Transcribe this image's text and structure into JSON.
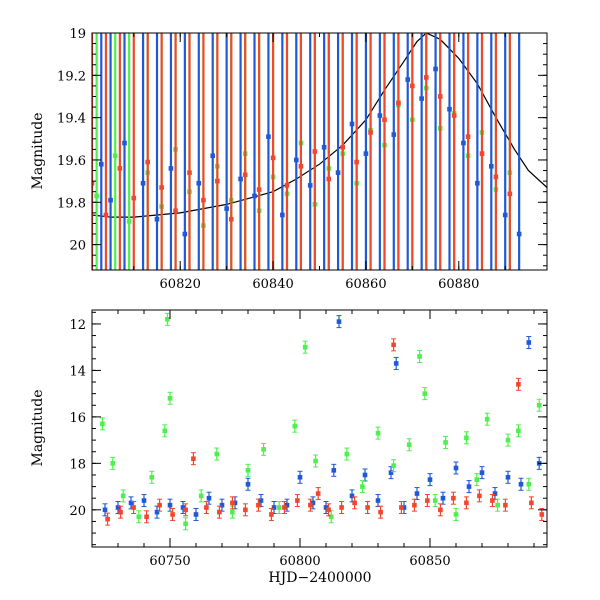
{
  "colors": {
    "blue": "#1f5ad6",
    "green": "#4ef04e",
    "red": "#f2472c",
    "curve": "#000000"
  },
  "chart_data": [
    {
      "type": "scatter",
      "title": "",
      "xlabel": "",
      "ylabel": "Magnitude",
      "xlim": [
        60801,
        60899
      ],
      "ylim": [
        20.12,
        19.0
      ],
      "y_inverted": true,
      "xticks": [
        60820,
        60840,
        60860,
        60880
      ],
      "yticks": [
        19,
        19.2,
        19.4,
        19.6,
        19.8,
        20
      ],
      "ytick_labels": [
        "19",
        "19.2",
        "19.4",
        "19.6",
        "19.8",
        "20"
      ],
      "model_curve": [
        [
          60801,
          19.86
        ],
        [
          60805,
          19.87
        ],
        [
          60810,
          19.87
        ],
        [
          60815,
          19.86
        ],
        [
          60820,
          19.85
        ],
        [
          60825,
          19.83
        ],
        [
          60830,
          19.81
        ],
        [
          60835,
          19.78
        ],
        [
          60840,
          19.75
        ],
        [
          60845,
          19.69
        ],
        [
          60850,
          19.62
        ],
        [
          60855,
          19.53
        ],
        [
          60860,
          19.41
        ],
        [
          60864,
          19.27
        ],
        [
          60868,
          19.14
        ],
        [
          60871,
          19.04
        ],
        [
          60873,
          19.0
        ],
        [
          60876,
          19.03
        ],
        [
          60880,
          19.12
        ],
        [
          60884,
          19.24
        ],
        [
          60888,
          19.4
        ],
        [
          60892,
          19.55
        ],
        [
          60895,
          19.65
        ],
        [
          60899,
          19.73
        ]
      ],
      "series": [
        {
          "color": "blue",
          "values": [
            [
              60803,
              19.62
            ],
            [
              60805,
              19.79
            ],
            [
              60808,
              19.52
            ],
            [
              60812,
              19.71
            ],
            [
              60815,
              19.88
            ],
            [
              60818,
              19.64
            ],
            [
              60821,
              19.95
            ],
            [
              60824,
              19.71
            ],
            [
              60827,
              19.58
            ],
            [
              60830,
              19.83
            ],
            [
              60833,
              19.69
            ],
            [
              60836,
              19.77
            ],
            [
              60839,
              19.49
            ],
            [
              60842,
              19.86
            ],
            [
              60845,
              19.6
            ],
            [
              60848,
              19.72
            ],
            [
              60851,
              19.54
            ],
            [
              60854,
              19.66
            ],
            [
              60857,
              19.43
            ],
            [
              60860,
              19.57
            ],
            [
              60863,
              19.39
            ],
            [
              60866,
              19.48
            ],
            [
              60869,
              19.22
            ],
            [
              60872,
              19.31
            ],
            [
              60875,
              19.17
            ],
            [
              60878,
              19.36
            ],
            [
              60881,
              19.52
            ],
            [
              60884,
              19.71
            ],
            [
              60887,
              19.63
            ],
            [
              60890,
              19.86
            ],
            [
              60893,
              19.95
            ]
          ]
        },
        {
          "color": "green",
          "values": [
            [
              60802,
              19.77
            ],
            [
              60806,
              19.58
            ],
            [
              60809,
              19.89
            ],
            [
              60813,
              19.66
            ],
            [
              60816,
              19.82
            ],
            [
              60819,
              19.55
            ],
            [
              60822,
              19.75
            ],
            [
              60825,
              19.91
            ],
            [
              60828,
              19.63
            ],
            [
              60831,
              19.79
            ],
            [
              60834,
              19.57
            ],
            [
              60837,
              19.84
            ],
            [
              60840,
              19.68
            ],
            [
              60843,
              19.76
            ],
            [
              60846,
              19.52
            ],
            [
              60849,
              19.81
            ],
            [
              60852,
              19.64
            ],
            [
              60855,
              19.57
            ],
            [
              60858,
              19.71
            ],
            [
              60861,
              19.46
            ],
            [
              60864,
              19.53
            ],
            [
              60867,
              19.34
            ],
            [
              60870,
              19.41
            ],
            [
              60873,
              19.26
            ],
            [
              60876,
              19.45
            ],
            [
              60879,
              19.38
            ],
            [
              60882,
              19.58
            ],
            [
              60885,
              19.47
            ],
            [
              60888,
              19.74
            ],
            [
              60891,
              19.66
            ]
          ]
        },
        {
          "color": "red",
          "values": [
            [
              60801,
              19.71
            ],
            [
              60804,
              19.86
            ],
            [
              60807,
              19.64
            ],
            [
              60810,
              19.78
            ],
            [
              60813,
              19.61
            ],
            [
              60816,
              19.73
            ],
            [
              60819,
              19.84
            ],
            [
              60822,
              19.66
            ],
            [
              60825,
              19.79
            ],
            [
              60828,
              19.7
            ],
            [
              60831,
              19.88
            ],
            [
              60834,
              19.67
            ],
            [
              60837,
              19.74
            ],
            [
              60840,
              19.59
            ],
            [
              60843,
              19.72
            ],
            [
              60846,
              19.63
            ],
            [
              60849,
              19.56
            ],
            [
              60852,
              19.69
            ],
            [
              60855,
              19.54
            ],
            [
              60858,
              19.61
            ],
            [
              60861,
              19.47
            ],
            [
              60864,
              19.41
            ],
            [
              60867,
              19.33
            ],
            [
              60870,
              19.25
            ],
            [
              60873,
              19.21
            ],
            [
              60876,
              19.3
            ],
            [
              60879,
              19.39
            ],
            [
              60882,
              19.49
            ],
            [
              60885,
              19.57
            ],
            [
              60888,
              19.68
            ],
            [
              60891,
              19.76
            ]
          ]
        }
      ]
    },
    {
      "type": "scatter",
      "title": "",
      "xlabel": "HJD−2400000",
      "ylabel": "Magnitude",
      "xlim": [
        60720,
        60895
      ],
      "ylim": [
        21.6,
        11.4
      ],
      "y_inverted": true,
      "xticks": [
        60750,
        60800,
        60850
      ],
      "yticks": [
        12,
        14,
        16,
        18,
        20
      ],
      "ytick_labels": [
        "12",
        "14",
        "16",
        "18",
        "20"
      ],
      "series": [
        {
          "color": "blue",
          "values": [
            [
              60725,
              20.0
            ],
            [
              60730,
              19.9
            ],
            [
              60735,
              19.7
            ],
            [
              60740,
              19.6
            ],
            [
              60745,
              20.1
            ],
            [
              60750,
              19.8
            ],
            [
              60755,
              19.9
            ],
            [
              60760,
              20.2
            ],
            [
              60765,
              19.5
            ],
            [
              60770,
              19.8
            ],
            [
              60775,
              19.7
            ],
            [
              60780,
              18.9
            ],
            [
              60785,
              19.6
            ],
            [
              60790,
              19.9
            ],
            [
              60795,
              19.8
            ],
            [
              60800,
              18.6
            ],
            [
              60805,
              19.7
            ],
            [
              60810,
              19.9
            ],
            [
              60813,
              18.3
            ],
            [
              60815,
              11.9
            ],
            [
              60820,
              19.4
            ],
            [
              60825,
              18.5
            ],
            [
              60830,
              19.6
            ],
            [
              60835,
              18.4
            ],
            [
              60837,
              13.7
            ],
            [
              60840,
              19.9
            ],
            [
              60845,
              19.3
            ],
            [
              60850,
              18.7
            ],
            [
              60855,
              19.5
            ],
            [
              60860,
              18.2
            ],
            [
              60865,
              19.0
            ],
            [
              60870,
              18.4
            ],
            [
              60875,
              19.3
            ],
            [
              60880,
              18.6
            ],
            [
              60885,
              18.9
            ],
            [
              60888,
              12.8
            ],
            [
              60892,
              18.0
            ]
          ]
        },
        {
          "color": "green",
          "values": [
            [
              60724,
              16.3
            ],
            [
              60728,
              18.0
            ],
            [
              60732,
              19.4
            ],
            [
              60738,
              20.3
            ],
            [
              60743,
              18.6
            ],
            [
              60748,
              16.6
            ],
            [
              60749,
              11.8
            ],
            [
              60750,
              15.2
            ],
            [
              60756,
              20.6
            ],
            [
              60762,
              19.4
            ],
            [
              60768,
              17.6
            ],
            [
              60774,
              20.1
            ],
            [
              60780,
              18.3
            ],
            [
              60786,
              17.4
            ],
            [
              60792,
              19.9
            ],
            [
              60798,
              16.4
            ],
            [
              60802,
              13.0
            ],
            [
              60806,
              17.9
            ],
            [
              60812,
              20.3
            ],
            [
              60818,
              17.6
            ],
            [
              60824,
              19.0
            ],
            [
              60830,
              16.7
            ],
            [
              60836,
              18.1
            ],
            [
              60842,
              17.2
            ],
            [
              60846,
              13.4
            ],
            [
              60848,
              15.0
            ],
            [
              60852,
              19.6
            ],
            [
              60856,
              17.1
            ],
            [
              60860,
              20.2
            ],
            [
              60864,
              16.9
            ],
            [
              60868,
              18.7
            ],
            [
              60872,
              16.1
            ],
            [
              60876,
              19.8
            ],
            [
              60880,
              17.0
            ],
            [
              60884,
              16.6
            ],
            [
              60888,
              18.9
            ],
            [
              60892,
              15.5
            ]
          ]
        },
        {
          "color": "red",
          "values": [
            [
              60726,
              20.4
            ],
            [
              60731,
              20.1
            ],
            [
              60736,
              19.9
            ],
            [
              60741,
              20.3
            ],
            [
              60746,
              19.8
            ],
            [
              60751,
              20.2
            ],
            [
              60756,
              20.0
            ],
            [
              60759,
              17.8
            ],
            [
              60764,
              19.9
            ],
            [
              60769,
              20.1
            ],
            [
              60774,
              19.7
            ],
            [
              60779,
              20.0
            ],
            [
              60784,
              19.8
            ],
            [
              60789,
              20.2
            ],
            [
              60794,
              19.9
            ],
            [
              60799,
              19.6
            ],
            [
              60804,
              19.8
            ],
            [
              60807,
              19.3
            ],
            [
              60811,
              20.0
            ],
            [
              60816,
              19.9
            ],
            [
              60821,
              19.7
            ],
            [
              60826,
              19.9
            ],
            [
              60831,
              20.1
            ],
            [
              60836,
              12.9
            ],
            [
              60839,
              19.9
            ],
            [
              60844,
              19.8
            ],
            [
              60849,
              19.6
            ],
            [
              60854,
              20.0
            ],
            [
              60859,
              19.5
            ],
            [
              60864,
              19.7
            ],
            [
              60869,
              19.4
            ],
            [
              60874,
              19.6
            ],
            [
              60879,
              19.8
            ],
            [
              60884,
              14.6
            ],
            [
              60889,
              19.7
            ],
            [
              60893,
              20.2
            ]
          ]
        }
      ]
    }
  ]
}
